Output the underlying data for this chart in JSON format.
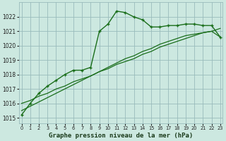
{
  "title": "Graphe pression niveau de la mer (hPa)",
  "x_hours": [
    0,
    1,
    2,
    3,
    4,
    5,
    6,
    7,
    8,
    9,
    10,
    11,
    12,
    13,
    14,
    15,
    16,
    17,
    18,
    19,
    20,
    21,
    22,
    23
  ],
  "line_main": [
    1015.2,
    1016.0,
    1016.7,
    1017.2,
    1017.6,
    1018.0,
    1018.3,
    1018.3,
    1018.5,
    1021.0,
    1021.5,
    1022.4,
    1022.3,
    1022.0,
    1021.8,
    1021.3,
    1021.3,
    1021.4,
    1021.4,
    1021.5,
    1021.5,
    1021.4,
    1021.4,
    1020.6
  ],
  "line_ref1": [
    1016.0,
    1016.2,
    1016.5,
    1016.7,
    1017.0,
    1017.2,
    1017.5,
    1017.7,
    1017.9,
    1018.2,
    1018.4,
    1018.7,
    1018.9,
    1019.1,
    1019.4,
    1019.6,
    1019.9,
    1020.1,
    1020.3,
    1020.5,
    1020.7,
    1020.9,
    1021.0,
    1021.2
  ],
  "line_ref2": [
    1015.5,
    1015.8,
    1016.1,
    1016.4,
    1016.7,
    1017.0,
    1017.3,
    1017.6,
    1017.9,
    1018.2,
    1018.5,
    1018.8,
    1019.1,
    1019.3,
    1019.6,
    1019.8,
    1020.1,
    1020.3,
    1020.5,
    1020.7,
    1020.8,
    1020.9,
    1021.0,
    1020.6
  ],
  "line_color": "#1a6e1a",
  "bg_color": "#cce8e0",
  "grid_color": "#99bbbb",
  "ylim": [
    1014.6,
    1023.0
  ],
  "yticks": [
    1015,
    1016,
    1017,
    1018,
    1019,
    1020,
    1021,
    1022
  ],
  "xlim": [
    -0.3,
    23.3
  ],
  "title_fontsize": 6.5
}
